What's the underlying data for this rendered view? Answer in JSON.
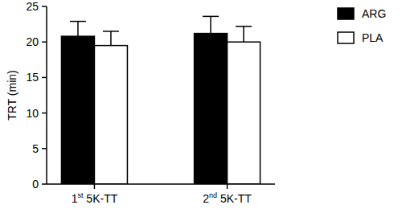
{
  "chart_data": {
    "type": "bar",
    "y_label": "TRT (min)",
    "categories": [
      "1st 5K-TT",
      "2nd 5K-TT"
    ],
    "series": [
      {
        "name": "ARG",
        "color": "#000000",
        "values": [
          20.8,
          21.2
        ],
        "errors": [
          2.1,
          2.4
        ]
      },
      {
        "name": "PLA",
        "color": "#ffffff",
        "values": [
          19.5,
          20.0
        ],
        "errors": [
          2.0,
          2.2
        ]
      }
    ],
    "ylim": [
      0,
      25
    ],
    "yticks": [
      0,
      5,
      10,
      15,
      20,
      25
    ],
    "grid": false,
    "legend": "top-right"
  }
}
